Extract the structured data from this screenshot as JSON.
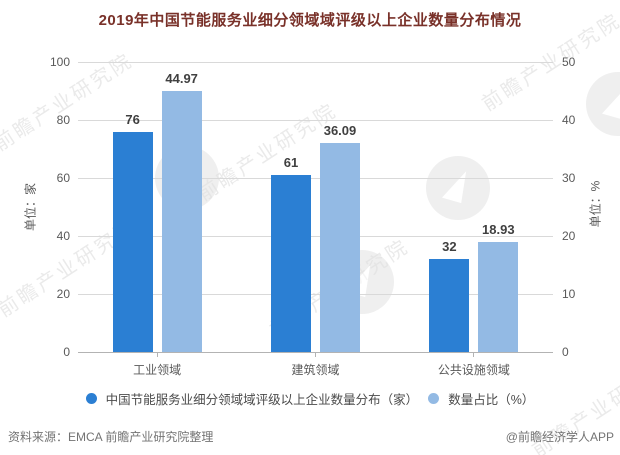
{
  "title": "2019年中国节能服务业细分领域域评级以上企业数量分布情况",
  "chart_data": {
    "type": "bar",
    "categories": [
      "工业领域",
      "建筑领域",
      "公共设施领域"
    ],
    "series": [
      {
        "name": "中国节能服务业细分领域域评级以上企业数量分布（家）",
        "axis": "left",
        "values": [
          76,
          61,
          32
        ],
        "color": "#2b7fd3"
      },
      {
        "name": "数量占比（%）",
        "axis": "right",
        "values": [
          44.97,
          36.09,
          18.93
        ],
        "color": "#93bae4"
      }
    ],
    "left_axis": {
      "title": "单位：家",
      "ticks": [
        0,
        20,
        40,
        60,
        80,
        100
      ],
      "max": 100
    },
    "right_axis": {
      "title": "单位：%",
      "ticks": [
        0,
        10,
        20,
        30,
        40,
        50
      ],
      "max": 50
    },
    "legend_position": "bottom",
    "grid": true
  },
  "footer": {
    "source": "资料来源：EMCA 前瞻产业研究院整理",
    "credit": "@前瞻经济学人APP"
  },
  "watermark": {
    "text": "前瞻产业研究院"
  },
  "colors": {
    "primary": "#2b7fd3",
    "secondary": "#93bae4",
    "title_text": "#793129",
    "grid": "#d9d9d9",
    "axis_text": "#595959",
    "value_text": "#404040"
  }
}
